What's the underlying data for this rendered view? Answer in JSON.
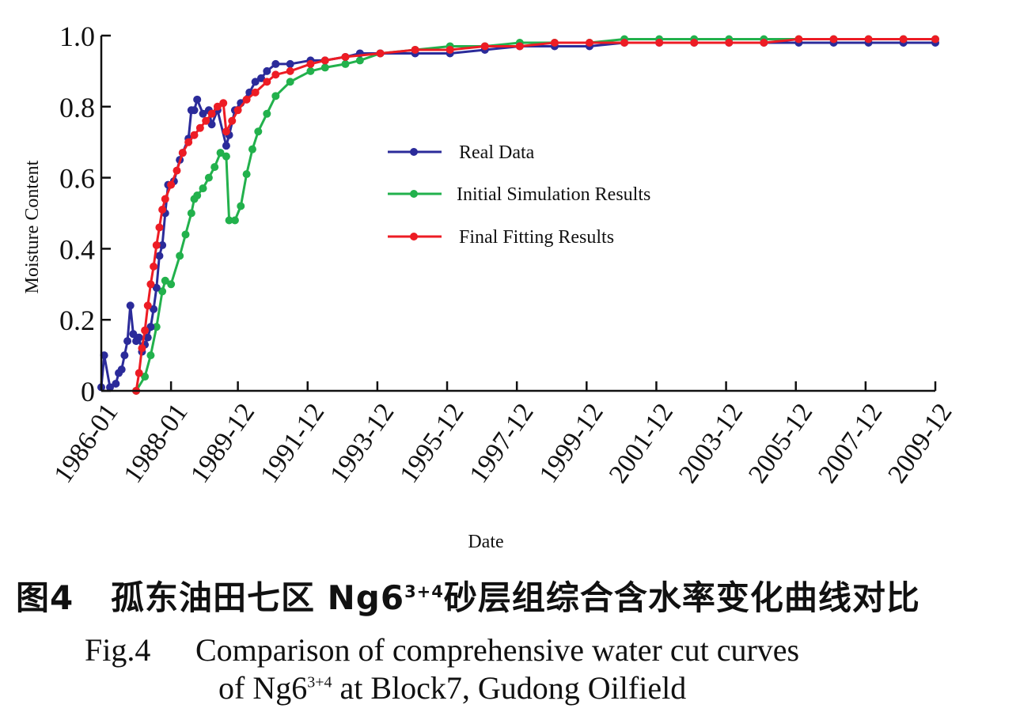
{
  "chart_data": {
    "type": "line",
    "title": "",
    "xlabel": "Date",
    "ylabel": "Moisture Content",
    "xlim": [
      "1986-01",
      "2009-12"
    ],
    "ylim": [
      0,
      1.0
    ],
    "grid": false,
    "legend_position": "center",
    "x_ticks": [
      "1986-01",
      "1988-01",
      "1989-12",
      "1991-12",
      "1993-12",
      "1995-12",
      "1997-12",
      "1999-12",
      "2001-12",
      "2003-12",
      "2005-12",
      "2007-12",
      "2009-12"
    ],
    "y_ticks": [
      "0",
      "0.2",
      "0.4",
      "0.6",
      "0.8",
      "1.0"
    ],
    "series": [
      {
        "name": "Real Data",
        "color": "#2b2b9a",
        "points": [
          [
            "1986-01",
            0.01
          ],
          [
            "1986-02",
            0.1
          ],
          [
            "1986-04",
            0.01
          ],
          [
            "1986-06",
            0.02
          ],
          [
            "1986-07",
            0.05
          ],
          [
            "1986-08",
            0.06
          ],
          [
            "1986-09",
            0.1
          ],
          [
            "1986-10",
            0.14
          ],
          [
            "1986-11",
            0.24
          ],
          [
            "1986-12",
            0.16
          ],
          [
            "1987-01",
            0.14
          ],
          [
            "1987-02",
            0.15
          ],
          [
            "1987-03",
            0.11
          ],
          [
            "1987-04",
            0.13
          ],
          [
            "1987-05",
            0.15
          ],
          [
            "1987-06",
            0.18
          ],
          [
            "1987-07",
            0.23
          ],
          [
            "1987-08",
            0.29
          ],
          [
            "1987-09",
            0.38
          ],
          [
            "1987-10",
            0.41
          ],
          [
            "1987-11",
            0.5
          ],
          [
            "1987-12",
            0.58
          ],
          [
            "1988-02",
            0.59
          ],
          [
            "1988-04",
            0.65
          ],
          [
            "1988-05",
            0.67
          ],
          [
            "1988-07",
            0.71
          ],
          [
            "1988-08",
            0.79
          ],
          [
            "1988-09",
            0.79
          ],
          [
            "1988-10",
            0.82
          ],
          [
            "1988-12",
            0.78
          ],
          [
            "1989-02",
            0.79
          ],
          [
            "1989-03",
            0.75
          ],
          [
            "1989-05",
            0.79
          ],
          [
            "1989-08",
            0.69
          ],
          [
            "1989-09",
            0.72
          ],
          [
            "1989-11",
            0.79
          ],
          [
            "1990-01",
            0.81
          ],
          [
            "1990-04",
            0.84
          ],
          [
            "1990-06",
            0.87
          ],
          [
            "1990-08",
            0.88
          ],
          [
            "1990-10",
            0.9
          ],
          [
            "1991-01",
            0.92
          ],
          [
            "1991-06",
            0.92
          ],
          [
            "1992-01",
            0.93
          ],
          [
            "1992-06",
            0.93
          ],
          [
            "1993-01",
            0.94
          ],
          [
            "1993-06",
            0.95
          ],
          [
            "1994-01",
            0.95
          ],
          [
            "1995-01",
            0.95
          ],
          [
            "1996-01",
            0.95
          ],
          [
            "1997-01",
            0.96
          ],
          [
            "1998-01",
            0.97
          ],
          [
            "1999-01",
            0.97
          ],
          [
            "2000-01",
            0.97
          ],
          [
            "2001-01",
            0.98
          ],
          [
            "2002-01",
            0.98
          ],
          [
            "2003-01",
            0.98
          ],
          [
            "2004-01",
            0.98
          ],
          [
            "2005-01",
            0.98
          ],
          [
            "2006-01",
            0.98
          ],
          [
            "2007-01",
            0.98
          ],
          [
            "2008-01",
            0.98
          ],
          [
            "2009-01",
            0.98
          ],
          [
            "2009-12",
            0.98
          ]
        ]
      },
      {
        "name": "Initial Simulation Results",
        "color": "#22b14c",
        "points": [
          [
            "1987-01",
            0.0
          ],
          [
            "1987-04",
            0.04
          ],
          [
            "1987-06",
            0.1
          ],
          [
            "1987-08",
            0.18
          ],
          [
            "1987-10",
            0.28
          ],
          [
            "1987-11",
            0.31
          ],
          [
            "1988-01",
            0.3
          ],
          [
            "1988-04",
            0.38
          ],
          [
            "1988-06",
            0.44
          ],
          [
            "1988-08",
            0.5
          ],
          [
            "1988-09",
            0.54
          ],
          [
            "1988-10",
            0.55
          ],
          [
            "1988-12",
            0.57
          ],
          [
            "1989-02",
            0.6
          ],
          [
            "1989-04",
            0.63
          ],
          [
            "1989-06",
            0.67
          ],
          [
            "1989-08",
            0.66
          ],
          [
            "1989-09",
            0.48
          ],
          [
            "1989-11",
            0.48
          ],
          [
            "1990-01",
            0.52
          ],
          [
            "1990-03",
            0.61
          ],
          [
            "1990-05",
            0.68
          ],
          [
            "1990-07",
            0.73
          ],
          [
            "1990-10",
            0.78
          ],
          [
            "1991-01",
            0.83
          ],
          [
            "1991-06",
            0.87
          ],
          [
            "1992-01",
            0.9
          ],
          [
            "1992-06",
            0.91
          ],
          [
            "1993-01",
            0.92
          ],
          [
            "1993-06",
            0.93
          ],
          [
            "1994-01",
            0.95
          ],
          [
            "1995-01",
            0.96
          ],
          [
            "1996-01",
            0.97
          ],
          [
            "1997-01",
            0.97
          ],
          [
            "1998-01",
            0.98
          ],
          [
            "1999-01",
            0.98
          ],
          [
            "2000-01",
            0.98
          ],
          [
            "2001-01",
            0.99
          ],
          [
            "2002-01",
            0.99
          ],
          [
            "2003-01",
            0.99
          ],
          [
            "2004-01",
            0.99
          ],
          [
            "2005-01",
            0.99
          ],
          [
            "2006-01",
            0.99
          ],
          [
            "2007-01",
            0.99
          ],
          [
            "2008-01",
            0.99
          ],
          [
            "2009-01",
            0.99
          ],
          [
            "2009-12",
            0.99
          ]
        ]
      },
      {
        "name": "Final Fitting Results",
        "color": "#ed1c24",
        "points": [
          [
            "1987-01",
            0.0
          ],
          [
            "1987-02",
            0.05
          ],
          [
            "1987-03",
            0.12
          ],
          [
            "1987-04",
            0.17
          ],
          [
            "1987-05",
            0.24
          ],
          [
            "1987-06",
            0.3
          ],
          [
            "1987-07",
            0.35
          ],
          [
            "1987-08",
            0.41
          ],
          [
            "1987-09",
            0.46
          ],
          [
            "1987-10",
            0.51
          ],
          [
            "1987-11",
            0.54
          ],
          [
            "1988-01",
            0.58
          ],
          [
            "1988-03",
            0.62
          ],
          [
            "1988-05",
            0.67
          ],
          [
            "1988-07",
            0.7
          ],
          [
            "1988-09",
            0.72
          ],
          [
            "1988-11",
            0.74
          ],
          [
            "1989-01",
            0.76
          ],
          [
            "1989-03",
            0.78
          ],
          [
            "1989-05",
            0.8
          ],
          [
            "1989-07",
            0.81
          ],
          [
            "1989-08",
            0.73
          ],
          [
            "1989-10",
            0.76
          ],
          [
            "1989-12",
            0.79
          ],
          [
            "1990-03",
            0.82
          ],
          [
            "1990-06",
            0.84
          ],
          [
            "1990-10",
            0.87
          ],
          [
            "1991-01",
            0.89
          ],
          [
            "1991-06",
            0.9
          ],
          [
            "1992-01",
            0.92
          ],
          [
            "1992-06",
            0.93
          ],
          [
            "1993-01",
            0.94
          ],
          [
            "1994-01",
            0.95
          ],
          [
            "1995-01",
            0.96
          ],
          [
            "1996-01",
            0.96
          ],
          [
            "1997-01",
            0.97
          ],
          [
            "1998-01",
            0.97
          ],
          [
            "1999-01",
            0.98
          ],
          [
            "2000-01",
            0.98
          ],
          [
            "2001-01",
            0.98
          ],
          [
            "2002-01",
            0.98
          ],
          [
            "2003-01",
            0.98
          ],
          [
            "2004-01",
            0.98
          ],
          [
            "2005-01",
            0.98
          ],
          [
            "2006-01",
            0.99
          ],
          [
            "2007-01",
            0.99
          ],
          [
            "2008-01",
            0.99
          ],
          [
            "2009-01",
            0.99
          ],
          [
            "2009-12",
            0.99
          ]
        ]
      }
    ]
  },
  "caption": {
    "cn_fig_label": "图4",
    "cn_text_pre": "孤东油田七区 Ng6",
    "cn_sup": "3+4",
    "cn_text_post": "砂层组综合含水率变化曲线对比",
    "en_fig_label": "Fig.4",
    "en_line1": "Comparison of comprehensive water cut curves",
    "en_line2_pre": "of Ng6",
    "en_sup": "3+4",
    "en_line2_post": " at Block7, Gudong Oilfield"
  }
}
